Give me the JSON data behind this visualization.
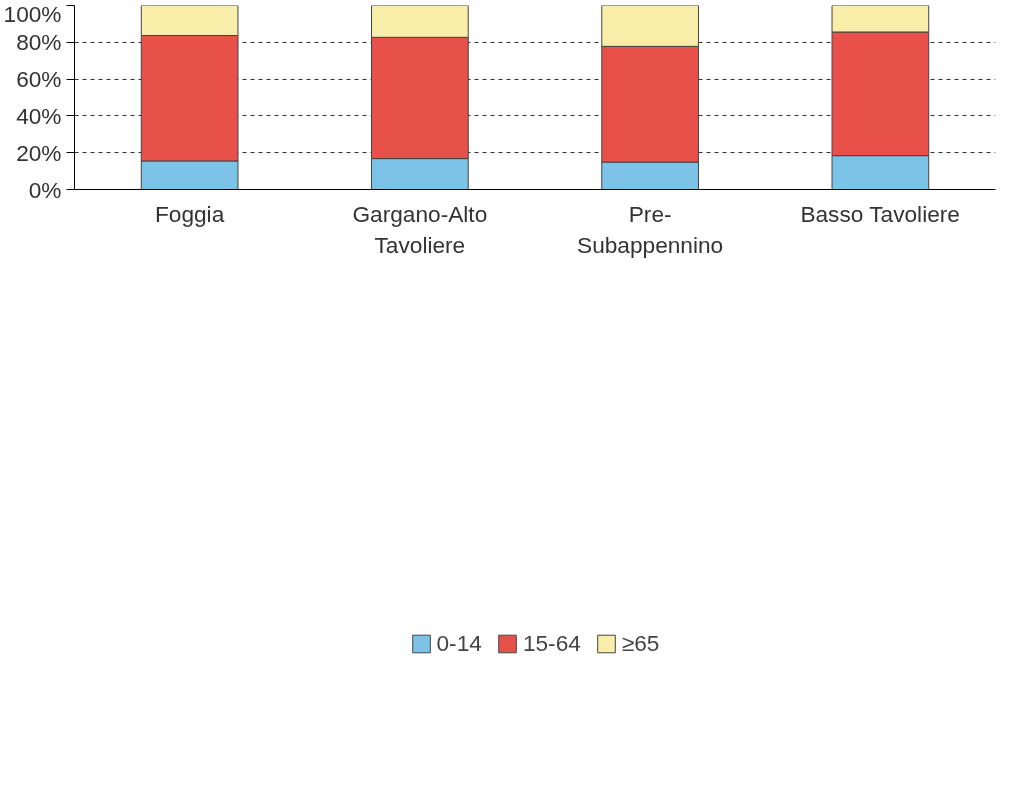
{
  "chart_data": {
    "type": "bar",
    "stacked": true,
    "categories": [
      "Foggia",
      "Gargano-Alto\nTavoliere",
      "Pre-\nSubappennino",
      "Basso Tavoliere"
    ],
    "series": [
      {
        "name": "0-14",
        "color": "#7dc3e8",
        "values": [
          15.5,
          16.8,
          14.9,
          18.4
        ]
      },
      {
        "name": "15-64",
        "color": "#e8504a",
        "values": [
          68.2,
          65.9,
          62.9,
          67.2
        ]
      },
      {
        "name": "≥65",
        "color": "#f8eeaa",
        "values": [
          16.3,
          17.3,
          22.2,
          14.4
        ]
      }
    ],
    "ylim": [
      0,
      100
    ],
    "yticks": [
      {
        "value": 0,
        "label": "0%"
      },
      {
        "value": 20,
        "label": "20%"
      },
      {
        "value": 40,
        "label": "40%"
      },
      {
        "value": 60,
        "label": "60%"
      },
      {
        "value": 80,
        "label": "80%"
      },
      {
        "value": 100,
        "label": "100%"
      }
    ],
    "grid": "y",
    "legend": "bottom"
  }
}
